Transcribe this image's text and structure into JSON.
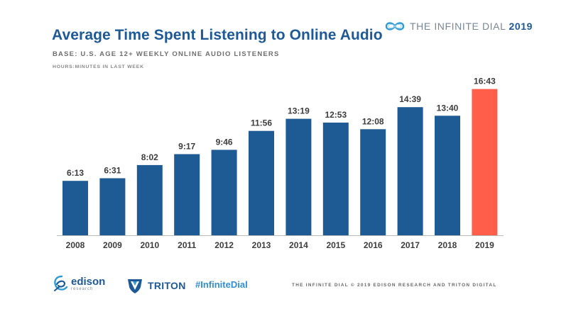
{
  "header": {
    "title": "Average Time Spent Listening to Online Audio",
    "base": "BASE: U.S. AGE 12+ WEEKLY ONLINE AUDIO LISTENERS",
    "units": "HOURS:MINUTES IN LAST WEEK"
  },
  "brand": {
    "name": "THE INFINITE DIAL",
    "year": "2019",
    "icon": "infinity-logo-icon"
  },
  "footer": {
    "edison_name": "edison",
    "edison_sub": "research",
    "triton_name": "TRITON",
    "hashtag": "#InfiniteDial",
    "copyright": "THE INFINITE DIAL  © 2019 EDISON RESEARCH AND TRITON DIGITAL"
  },
  "colors": {
    "bar": "#1e5a94",
    "highlight": "#ff5e4b",
    "label": "#3d3d3d",
    "title": "#1d5996",
    "axis": "#bbbbbb"
  },
  "chart_data": {
    "type": "bar",
    "title": "Average Time Spent Listening to Online Audio",
    "subtitle": "BASE: U.S. AGE 12+ WEEKLY ONLINE AUDIO LISTENERS",
    "ylabel": "HOURS:MINUTES IN LAST WEEK",
    "xlabel": "",
    "categories": [
      "2008",
      "2009",
      "2010",
      "2011",
      "2012",
      "2013",
      "2014",
      "2015",
      "2016",
      "2017",
      "2018",
      "2019"
    ],
    "labels": [
      "6:13",
      "6:31",
      "8:02",
      "9:17",
      "9:46",
      "11:56",
      "13:19",
      "12:53",
      "12:08",
      "14:39",
      "13:40",
      "16:43"
    ],
    "values": [
      6.22,
      6.52,
      8.03,
      9.28,
      9.77,
      11.93,
      13.32,
      12.88,
      12.13,
      14.65,
      13.67,
      16.72
    ],
    "ylim": [
      0,
      17.5
    ],
    "highlight_category": "2019",
    "grid": false,
    "legend": "none"
  }
}
